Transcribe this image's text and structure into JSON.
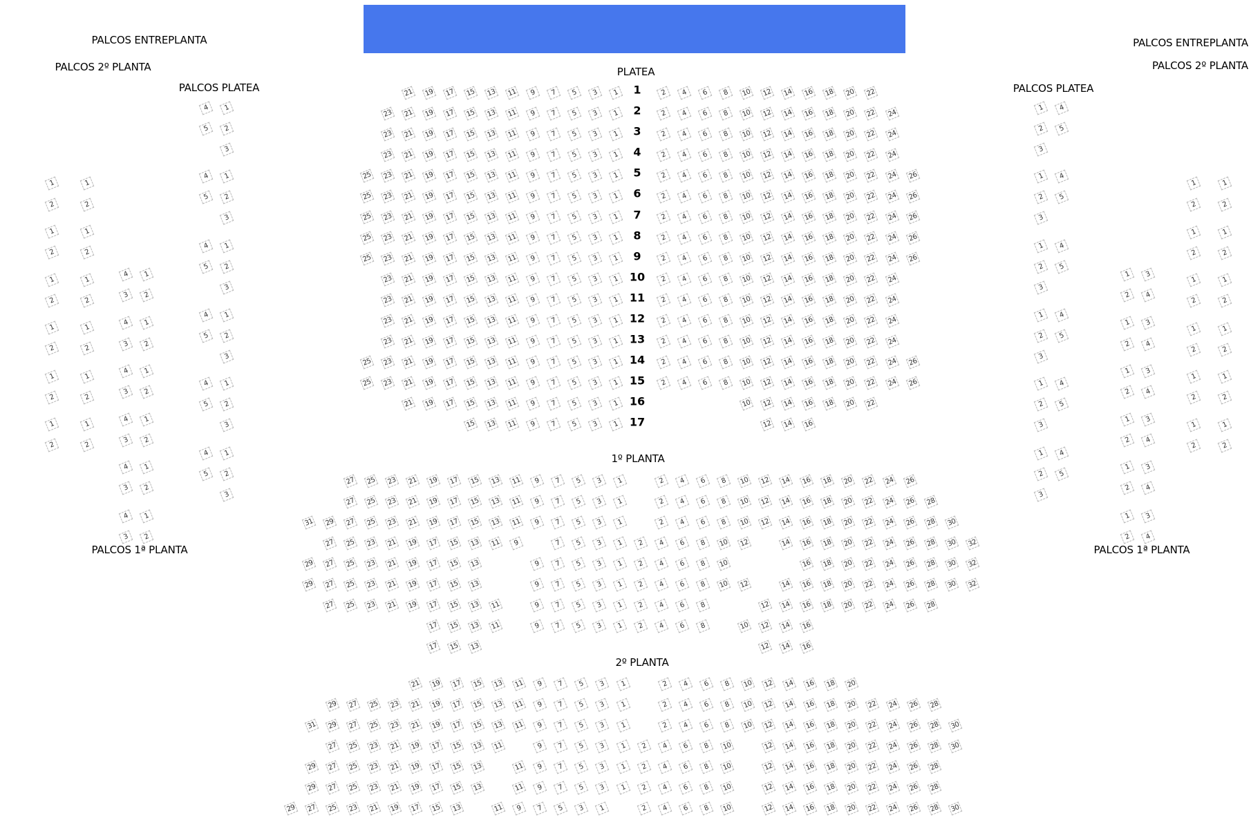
{
  "stage": {
    "color": "#4677ED"
  },
  "labels": {
    "palcos_entreplanta_left": "PALCOS ENTREPLANTA",
    "palcos_2_left": "PALCOS 2º PLANTA",
    "palcos_platea_left": "PALCOS PLATEA",
    "palcos_1_left": "PALCOS 1ª PLANTA",
    "palcos_entreplanta_right": "PALCOS ENTREPLANTA",
    "palcos_2_right": "PALCOS 2º PLANTA",
    "palcos_platea_right": "PALCOS PLATEA",
    "palcos_1_right": "PALCOS 1ª PLANTA",
    "platea": "PLATEA",
    "planta1": "1º PLANTA",
    "planta2": "2º PLANTA"
  },
  "platea": {
    "rows": [
      {
        "row": "1",
        "left": [
          21,
          19,
          17,
          15,
          13,
          11,
          9,
          7,
          5,
          3,
          1
        ],
        "right": [
          2,
          4,
          6,
          8,
          10,
          12,
          14,
          16,
          18,
          20,
          22
        ]
      },
      {
        "row": "2",
        "left": [
          23,
          21,
          19,
          17,
          15,
          13,
          11,
          9,
          7,
          5,
          3,
          1
        ],
        "right": [
          2,
          4,
          6,
          8,
          10,
          12,
          14,
          16,
          18,
          20,
          22,
          24
        ]
      },
      {
        "row": "3",
        "left": [
          23,
          21,
          19,
          17,
          15,
          13,
          11,
          9,
          7,
          5,
          3,
          1
        ],
        "right": [
          2,
          4,
          6,
          8,
          10,
          12,
          14,
          16,
          18,
          20,
          22,
          24
        ]
      },
      {
        "row": "4",
        "left": [
          23,
          21,
          19,
          17,
          15,
          13,
          11,
          9,
          7,
          5,
          3,
          1
        ],
        "right": [
          2,
          4,
          6,
          8,
          10,
          12,
          14,
          16,
          18,
          20,
          22,
          24
        ]
      },
      {
        "row": "5",
        "left": [
          25,
          23,
          21,
          19,
          17,
          15,
          13,
          11,
          9,
          7,
          5,
          3,
          1
        ],
        "right": [
          2,
          4,
          6,
          8,
          10,
          12,
          14,
          16,
          18,
          20,
          22,
          24,
          26
        ]
      },
      {
        "row": "6",
        "left": [
          25,
          23,
          21,
          19,
          17,
          15,
          13,
          11,
          9,
          7,
          5,
          3,
          1
        ],
        "right": [
          2,
          4,
          6,
          8,
          10,
          12,
          14,
          16,
          18,
          20,
          22,
          24,
          26
        ]
      },
      {
        "row": "7",
        "left": [
          25,
          23,
          21,
          19,
          17,
          15,
          13,
          11,
          9,
          7,
          5,
          3,
          1
        ],
        "right": [
          2,
          4,
          6,
          8,
          10,
          12,
          14,
          16,
          18,
          20,
          22,
          24,
          26
        ]
      },
      {
        "row": "8",
        "left": [
          25,
          23,
          21,
          19,
          17,
          15,
          13,
          11,
          9,
          7,
          5,
          3,
          1
        ],
        "right": [
          2,
          4,
          6,
          8,
          10,
          12,
          14,
          16,
          18,
          20,
          22,
          24,
          26
        ]
      },
      {
        "row": "9",
        "left": [
          25,
          23,
          21,
          19,
          17,
          15,
          13,
          11,
          9,
          7,
          5,
          3,
          1
        ],
        "right": [
          2,
          4,
          6,
          8,
          10,
          12,
          14,
          16,
          18,
          20,
          22,
          24,
          26
        ]
      },
      {
        "row": "10",
        "left": [
          23,
          21,
          19,
          17,
          15,
          13,
          11,
          9,
          7,
          5,
          3,
          1
        ],
        "right": [
          2,
          4,
          6,
          8,
          10,
          12,
          14,
          16,
          18,
          20,
          22,
          24
        ]
      },
      {
        "row": "11",
        "left": [
          23,
          21,
          19,
          17,
          15,
          13,
          11,
          9,
          7,
          5,
          3,
          1
        ],
        "right": [
          2,
          4,
          6,
          8,
          10,
          12,
          14,
          16,
          18,
          20,
          22,
          24
        ]
      },
      {
        "row": "12",
        "left": [
          23,
          21,
          19,
          17,
          15,
          13,
          11,
          9,
          7,
          5,
          3,
          1
        ],
        "right": [
          2,
          4,
          6,
          8,
          10,
          12,
          14,
          16,
          18,
          20,
          22,
          24
        ]
      },
      {
        "row": "13",
        "left": [
          23,
          21,
          19,
          17,
          15,
          13,
          11,
          9,
          7,
          5,
          3,
          1
        ],
        "right": [
          2,
          4,
          6,
          8,
          10,
          12,
          14,
          16,
          18,
          20,
          22,
          24
        ]
      },
      {
        "row": "14",
        "left": [
          25,
          23,
          21,
          19,
          17,
          15,
          13,
          11,
          9,
          7,
          5,
          3,
          1
        ],
        "right": [
          2,
          4,
          6,
          8,
          10,
          12,
          14,
          16,
          18,
          20,
          22,
          24,
          26
        ]
      },
      {
        "row": "15",
        "left": [
          25,
          23,
          21,
          19,
          17,
          15,
          13,
          11,
          9,
          7,
          5,
          3,
          1
        ],
        "right": [
          2,
          4,
          6,
          8,
          10,
          12,
          14,
          16,
          18,
          20,
          22,
          24,
          26
        ]
      },
      {
        "row": "16",
        "left": [
          21,
          19,
          17,
          15,
          13,
          11,
          9,
          7,
          5,
          3,
          1
        ],
        "right": [
          10,
          12,
          14,
          16,
          18,
          20,
          22
        ]
      },
      {
        "row": "17",
        "left": [
          15,
          13,
          11,
          9,
          7,
          5,
          3,
          1
        ],
        "right": [
          12,
          14,
          16
        ]
      }
    ]
  },
  "planta1": {
    "rows": [
      [
        27,
        25,
        23,
        21,
        19,
        17,
        15,
        13,
        11,
        9,
        7,
        5,
        3,
        1,
        null,
        2,
        4,
        6,
        8,
        10,
        12,
        14,
        16,
        18,
        20,
        22,
        24,
        26
      ],
      [
        27,
        25,
        23,
        21,
        19,
        17,
        15,
        13,
        11,
        9,
        7,
        5,
        3,
        1,
        null,
        2,
        4,
        6,
        8,
        10,
        12,
        14,
        16,
        18,
        20,
        22,
        24,
        26,
        28
      ],
      [
        31,
        29,
        27,
        25,
        23,
        21,
        19,
        17,
        15,
        13,
        11,
        9,
        7,
        5,
        3,
        1,
        null,
        2,
        4,
        6,
        8,
        10,
        12,
        14,
        16,
        18,
        20,
        22,
        24,
        26,
        28,
        30
      ],
      [
        27,
        25,
        23,
        21,
        19,
        17,
        15,
        13,
        11,
        9,
        null,
        7,
        5,
        3,
        1,
        2,
        4,
        6,
        8,
        10,
        12,
        null,
        14,
        16,
        18,
        20,
        22,
        24,
        26,
        28,
        30,
        32
      ],
      [
        29,
        27,
        25,
        23,
        21,
        19,
        17,
        15,
        13,
        null,
        null,
        9,
        7,
        5,
        3,
        1,
        2,
        4,
        6,
        8,
        10,
        null,
        null,
        null,
        16,
        18,
        20,
        22,
        24,
        26,
        28,
        30,
        32
      ],
      [
        29,
        27,
        25,
        23,
        21,
        19,
        17,
        15,
        13,
        null,
        null,
        9,
        7,
        5,
        3,
        1,
        2,
        4,
        6,
        8,
        10,
        12,
        null,
        14,
        16,
        18,
        20,
        22,
        24,
        26,
        28,
        30,
        32
      ],
      [
        27,
        25,
        23,
        21,
        19,
        17,
        15,
        13,
        11,
        null,
        9,
        7,
        5,
        3,
        1,
        2,
        4,
        6,
        8,
        null,
        null,
        12,
        14,
        16,
        18,
        20,
        22,
        24,
        26,
        28
      ],
      [
        17,
        15,
        13,
        11,
        null,
        9,
        7,
        5,
        3,
        1,
        2,
        4,
        6,
        8,
        null,
        10,
        12,
        14,
        16
      ],
      [
        17,
        15,
        13,
        null,
        null,
        null,
        null,
        null,
        null,
        null,
        null,
        null,
        null,
        null,
        null,
        null,
        12,
        14,
        16
      ]
    ]
  },
  "planta2": {
    "rows": [
      [
        21,
        19,
        17,
        15,
        13,
        11,
        9,
        7,
        5,
        3,
        1,
        null,
        2,
        4,
        6,
        8,
        10,
        12,
        14,
        16,
        18,
        20
      ],
      [
        29,
        27,
        25,
        23,
        21,
        19,
        17,
        15,
        13,
        11,
        9,
        7,
        5,
        3,
        1,
        null,
        2,
        4,
        6,
        8,
        10,
        12,
        14,
        16,
        18,
        20,
        22,
        24,
        26,
        28
      ],
      [
        31,
        29,
        27,
        25,
        23,
        21,
        19,
        17,
        15,
        13,
        11,
        9,
        7,
        5,
        3,
        1,
        null,
        2,
        4,
        6,
        8,
        10,
        12,
        14,
        16,
        18,
        20,
        22,
        24,
        26,
        28,
        30
      ],
      [
        27,
        25,
        23,
        21,
        19,
        17,
        15,
        13,
        11,
        null,
        9,
        7,
        5,
        3,
        1,
        2,
        4,
        6,
        8,
        10,
        null,
        12,
        14,
        16,
        18,
        20,
        22,
        24,
        26,
        28,
        30
      ],
      [
        29,
        27,
        25,
        23,
        21,
        19,
        17,
        15,
        13,
        null,
        11,
        9,
        7,
        5,
        3,
        1,
        2,
        4,
        6,
        8,
        10,
        null,
        12,
        14,
        16,
        18,
        20,
        22,
        24,
        26,
        28
      ],
      [
        29,
        27,
        25,
        23,
        21,
        19,
        17,
        15,
        13,
        null,
        11,
        9,
        7,
        5,
        3,
        1,
        2,
        4,
        6,
        8,
        10,
        null,
        12,
        14,
        16,
        18,
        20,
        22,
        24,
        26,
        28
      ],
      [
        29,
        27,
        25,
        23,
        21,
        19,
        17,
        15,
        13,
        null,
        11,
        9,
        7,
        5,
        3,
        1,
        null,
        2,
        4,
        6,
        8,
        10,
        null,
        12,
        14,
        16,
        18,
        20,
        22,
        24,
        26,
        28,
        30
      ]
    ]
  },
  "palcos": {
    "platea_left": {
      "box": [
        [
          4,
          1
        ],
        [
          5,
          2
        ],
        [
          null,
          3
        ]
      ],
      "count": 6
    },
    "planta1_left": {
      "box": [
        [
          4,
          1
        ],
        [
          3,
          2
        ]
      ],
      "count": 6
    },
    "planta2_left": {
      "box": [
        [
          1,
          1
        ],
        [
          2,
          2
        ]
      ],
      "count": 6
    },
    "platea_right": {
      "box": [
        [
          1,
          4
        ],
        [
          2,
          5
        ],
        [
          3,
          null
        ]
      ],
      "count": 6
    },
    "planta1_right": {
      "box": [
        [
          1,
          3
        ],
        [
          2,
          4
        ]
      ],
      "count": 6
    },
    "planta2_right": {
      "box": [
        [
          1,
          1
        ],
        [
          2,
          2
        ]
      ],
      "count": 6
    }
  }
}
